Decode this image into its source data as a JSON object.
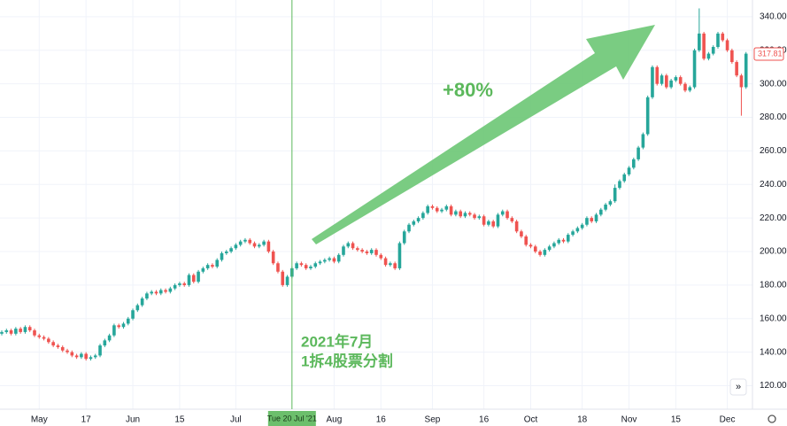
{
  "chart_data": {
    "type": "candlestick",
    "up_color": "#26a69a",
    "down_color": "#ef5350",
    "open": [
      151,
      152,
      153,
      151,
      154,
      152,
      155,
      153,
      150,
      149,
      148,
      146,
      144,
      143,
      141,
      140,
      138,
      137,
      139,
      136,
      137,
      138,
      144,
      147,
      150,
      156,
      155,
      157,
      160,
      165,
      168,
      172,
      175,
      176,
      175,
      177,
      176,
      178,
      180,
      181,
      180,
      186,
      182,
      188,
      190,
      192,
      191,
      195,
      199,
      200,
      202,
      204,
      206,
      207,
      205,
      203,
      204,
      206,
      200,
      193,
      188,
      180,
      185,
      190,
      193,
      192,
      190,
      191,
      193,
      194,
      195,
      196,
      194,
      198,
      203,
      205,
      202,
      201,
      200,
      199,
      201,
      198,
      196,
      192,
      193,
      190,
      205,
      212,
      216,
      218,
      220,
      223,
      227,
      226,
      224,
      225,
      227,
      222,
      224,
      221,
      223,
      222,
      220,
      221,
      216,
      218,
      215,
      222,
      224,
      220,
      218,
      212,
      209,
      204,
      203,
      200,
      198,
      201,
      203,
      205,
      207,
      206,
      210,
      212,
      214,
      216,
      220,
      218,
      222,
      225,
      228,
      230,
      238,
      242,
      246,
      250,
      255,
      262,
      270,
      292,
      310,
      300,
      305,
      298,
      302,
      304,
      300,
      296,
      298,
      320,
      330,
      315,
      318,
      322,
      330,
      326,
      320,
      313,
      305,
      298
    ],
    "high": [
      153,
      154,
      154,
      155,
      155,
      156,
      156,
      154,
      151,
      150,
      149,
      147,
      145,
      144,
      142,
      141,
      139,
      140,
      140,
      138,
      139,
      145,
      148,
      151,
      157,
      157,
      158,
      161,
      166,
      169,
      173,
      176,
      177,
      177,
      178,
      178,
      179,
      181,
      182,
      182,
      187,
      187,
      189,
      191,
      193,
      193,
      196,
      200,
      201,
      203,
      205,
      207,
      208,
      208,
      206,
      205,
      207,
      207,
      201,
      194,
      189,
      186,
      191,
      194,
      194,
      193,
      192,
      194,
      195,
      196,
      197,
      197,
      199,
      204,
      206,
      206,
      203,
      202,
      201,
      202,
      202,
      199,
      197,
      194,
      194,
      206,
      213,
      217,
      219,
      221,
      224,
      228,
      228,
      227,
      226,
      228,
      228,
      225,
      225,
      224,
      224,
      223,
      222,
      222,
      219,
      219,
      223,
      225,
      225,
      221,
      219,
      213,
      210,
      205,
      204,
      201,
      202,
      204,
      206,
      208,
      208,
      211,
      213,
      215,
      217,
      221,
      221,
      223,
      226,
      229,
      231,
      240,
      243,
      247,
      251,
      256,
      263,
      271,
      293,
      311,
      311,
      306,
      306,
      303,
      305,
      305,
      301,
      299,
      321,
      345,
      331,
      319,
      323,
      331,
      331,
      327,
      321,
      314,
      306,
      319
    ],
    "low": [
      150,
      151,
      150,
      150,
      151,
      151,
      152,
      149,
      148,
      147,
      145,
      143,
      142,
      140,
      139,
      137,
      136,
      136,
      135,
      135,
      136,
      137,
      143,
      146,
      149,
      154,
      154,
      156,
      159,
      164,
      167,
      171,
      174,
      174,
      174,
      175,
      175,
      177,
      179,
      179,
      179,
      181,
      181,
      187,
      189,
      190,
      190,
      194,
      198,
      199,
      201,
      203,
      205,
      204,
      202,
      202,
      203,
      199,
      192,
      187,
      179,
      179,
      184,
      189,
      191,
      189,
      189,
      190,
      192,
      193,
      194,
      193,
      193,
      197,
      202,
      201,
      200,
      199,
      198,
      198,
      197,
      195,
      191,
      191,
      189,
      189,
      204,
      211,
      215,
      217,
      219,
      222,
      225,
      223,
      223,
      224,
      221,
      221,
      220,
      220,
      221,
      219,
      219,
      215,
      215,
      214,
      214,
      221,
      219,
      217,
      211,
      208,
      203,
      202,
      199,
      197,
      197,
      200,
      202,
      204,
      205,
      205,
      209,
      211,
      213,
      215,
      217,
      217,
      221,
      224,
      227,
      229,
      237,
      241,
      245,
      249,
      254,
      261,
      269,
      291,
      299,
      299,
      297,
      297,
      301,
      299,
      295,
      295,
      297,
      319,
      314,
      314,
      317,
      321,
      325,
      319,
      312,
      304,
      281,
      297
    ],
    "close": [
      152,
      153,
      151,
      154,
      152,
      155,
      153,
      150,
      149,
      148,
      146,
      144,
      143,
      141,
      140,
      138,
      137,
      139,
      136,
      137,
      138,
      144,
      147,
      150,
      156,
      155,
      157,
      160,
      165,
      168,
      172,
      175,
      176,
      175,
      177,
      176,
      178,
      180,
      181,
      180,
      186,
      182,
      188,
      190,
      192,
      191,
      195,
      199,
      200,
      202,
      204,
      206,
      207,
      205,
      203,
      204,
      206,
      200,
      193,
      188,
      180,
      185,
      190,
      193,
      192,
      190,
      191,
      193,
      194,
      195,
      196,
      194,
      198,
      203,
      205,
      202,
      201,
      200,
      199,
      201,
      198,
      196,
      192,
      193,
      190,
      205,
      212,
      216,
      218,
      220,
      223,
      227,
      226,
      224,
      225,
      227,
      222,
      224,
      221,
      223,
      222,
      220,
      221,
      216,
      218,
      215,
      222,
      224,
      220,
      218,
      212,
      209,
      204,
      203,
      200,
      198,
      201,
      203,
      205,
      207,
      206,
      210,
      212,
      214,
      216,
      220,
      218,
      222,
      225,
      228,
      230,
      238,
      242,
      246,
      250,
      255,
      262,
      270,
      292,
      310,
      300,
      305,
      298,
      302,
      304,
      300,
      296,
      298,
      320,
      330,
      315,
      318,
      322,
      330,
      326,
      320,
      313,
      305,
      298,
      318
    ],
    "ylim": [
      106,
      350
    ],
    "yticks": [
      {
        "value": 120,
        "label": "120.00"
      },
      {
        "value": 140,
        "label": "140.00"
      },
      {
        "value": 160,
        "label": "160.00"
      },
      {
        "value": 180,
        "label": "180.00"
      },
      {
        "value": 200,
        "label": "200.00"
      },
      {
        "value": 220,
        "label": "220.00"
      },
      {
        "value": 240,
        "label": "240.00"
      },
      {
        "value": 260,
        "label": "260.00"
      },
      {
        "value": 280,
        "label": "280.00"
      },
      {
        "value": 300,
        "label": "300.00"
      },
      {
        "value": 320,
        "label": "320.00"
      },
      {
        "value": 340,
        "label": "340.00"
      }
    ],
    "xlim": [
      0,
      160
    ],
    "xticks": [
      {
        "value": 8,
        "label": "May"
      },
      {
        "value": 18,
        "label": "17"
      },
      {
        "value": 28,
        "label": "Jun"
      },
      {
        "value": 38,
        "label": "15"
      },
      {
        "value": 50,
        "label": "Jul"
      },
      {
        "value": 71,
        "label": "Aug"
      },
      {
        "value": 81,
        "label": "16"
      },
      {
        "value": 92,
        "label": "Sep"
      },
      {
        "value": 103,
        "label": "16"
      },
      {
        "value": 113,
        "label": "Oct"
      },
      {
        "value": 124,
        "label": "18"
      },
      {
        "value": 134,
        "label": "Nov"
      },
      {
        "value": 144,
        "label": "15"
      },
      {
        "value": 155,
        "label": "Dec"
      }
    ],
    "crosshair": {
      "value": 62,
      "label": "Tue 20 Jul '21"
    },
    "last_price": 317.81,
    "grid": true,
    "annotations": [
      "+80%",
      "2021年7月",
      "1拆4股票分割"
    ]
  }
}
